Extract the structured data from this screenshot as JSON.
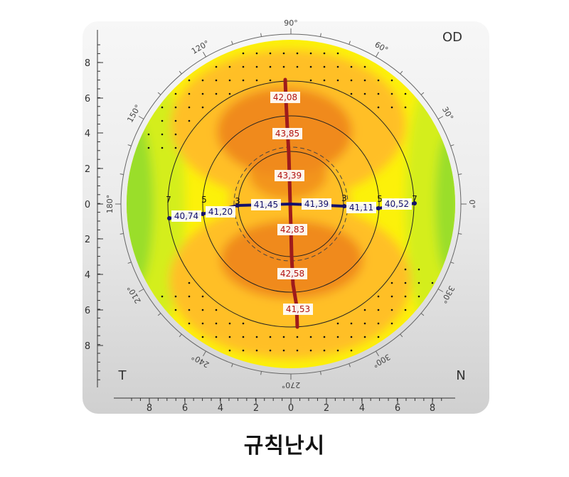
{
  "eye_label": "OD",
  "side_left": "T",
  "side_right": "N",
  "caption": "규칙난시",
  "colors": {
    "steep": "#f08a1e",
    "mid": "#ffbf26",
    "flat": "#fcf10a",
    "flatter": "#d4ee1e",
    "flattest": "#9ade2a",
    "vertical_meridian": "#9e1b1b",
    "horizontal_meridian": "#13106b"
  },
  "angles": [
    {
      "label": "90°",
      "deg": 90
    },
    {
      "label": "60°",
      "deg": 60
    },
    {
      "label": "30°",
      "deg": 30
    },
    {
      "label": "0°",
      "deg": 0
    },
    {
      "label": "330°",
      "deg": 330
    },
    {
      "label": "300°",
      "deg": 300
    },
    {
      "label": "270°",
      "deg": 270
    },
    {
      "label": "240°",
      "deg": 240
    },
    {
      "label": "210°",
      "deg": 210
    },
    {
      "label": "180°",
      "deg": 180
    },
    {
      "label": "150°",
      "deg": 150
    },
    {
      "label": "120°",
      "deg": 120
    }
  ],
  "y_ticks": [
    "8",
    "6",
    "4",
    "2",
    "0",
    "2",
    "4",
    "6",
    "8"
  ],
  "x_ticks": [
    "8",
    "6",
    "4",
    "2",
    "0",
    "2",
    "4",
    "6",
    "8"
  ],
  "ring_labels": [
    "7",
    "5",
    "3",
    "3",
    "5",
    "7"
  ],
  "vertical_values": [
    "42,08",
    "43,85",
    "43,39",
    "42,83",
    "42,58",
    "41,53"
  ],
  "horizontal_values": [
    "40,74",
    "41,20",
    "41,45",
    "41,39",
    "41,11",
    "40,52"
  ]
}
